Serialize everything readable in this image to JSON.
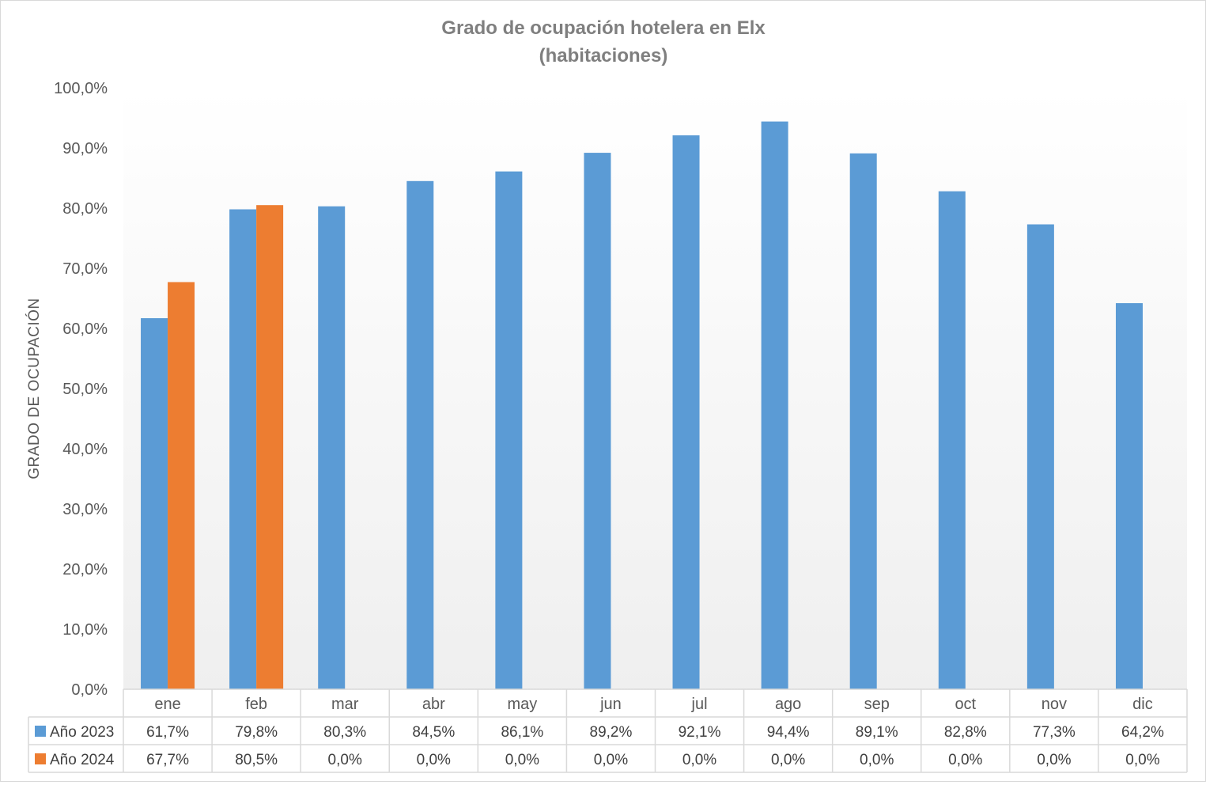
{
  "chart_data": {
    "type": "bar",
    "title": "Grado de ocupación hotelera en Elx",
    "subtitle": "(habitaciones)",
    "xlabel": "",
    "ylabel": "GRADO DE OCUPACIÓN",
    "ylim": [
      0,
      100
    ],
    "yticks": [
      "0,0%",
      "10,0%",
      "20,0%",
      "30,0%",
      "40,0%",
      "50,0%",
      "60,0%",
      "70,0%",
      "80,0%",
      "90,0%",
      "100,0%"
    ],
    "categories": [
      "ene",
      "feb",
      "mar",
      "abr",
      "may",
      "jun",
      "jul",
      "ago",
      "sep",
      "oct",
      "nov",
      "dic"
    ],
    "series": [
      {
        "name": "Año 2023",
        "color": "#5b9bd5",
        "values": [
          61.7,
          79.8,
          80.3,
          84.5,
          86.1,
          89.2,
          92.1,
          94.4,
          89.1,
          82.8,
          77.3,
          64.2
        ],
        "labels": [
          "61,7%",
          "79,8%",
          "80,3%",
          "84,5%",
          "86,1%",
          "89,2%",
          "92,1%",
          "94,4%",
          "89,1%",
          "82,8%",
          "77,3%",
          "64,2%"
        ]
      },
      {
        "name": "Año 2024",
        "color": "#ed7d31",
        "values": [
          67.7,
          80.5,
          0,
          0,
          0,
          0,
          0,
          0,
          0,
          0,
          0,
          0
        ],
        "labels": [
          "67,7%",
          "80,5%",
          "0,0%",
          "0,0%",
          "0,0%",
          "0,0%",
          "0,0%",
          "0,0%",
          "0,0%",
          "0,0%",
          "0,0%",
          "0,0%"
        ]
      }
    ],
    "grid": false,
    "legend": "data-table"
  }
}
